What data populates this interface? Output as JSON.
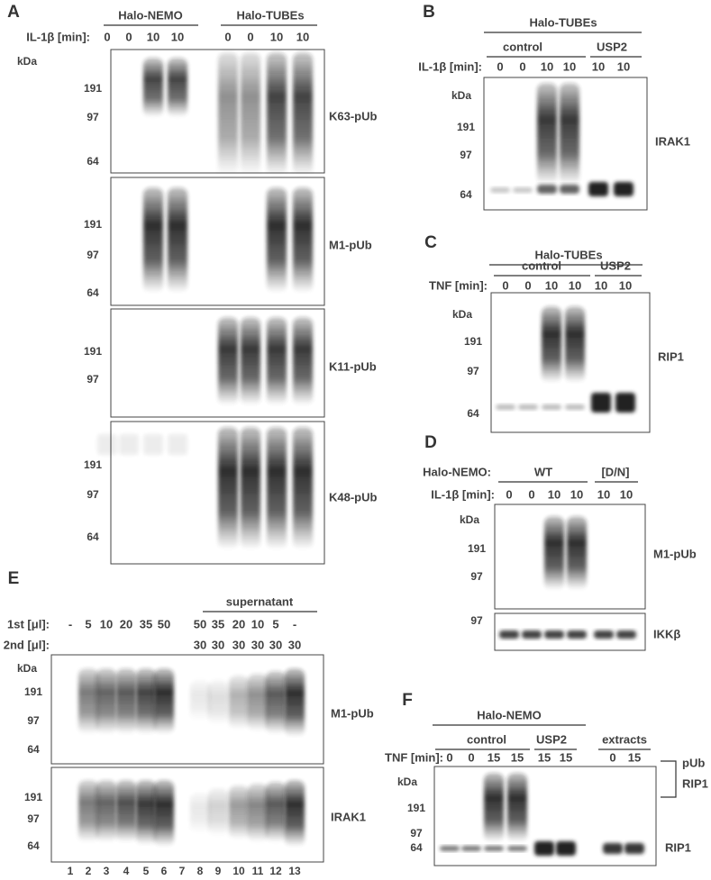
{
  "panel_a": {
    "letter": "A",
    "groups": [
      "Halo-NEMO",
      "Halo-TUBEs"
    ],
    "rows": [
      {
        "label": "IL-1β [min]:",
        "values": [
          "0",
          "0",
          "10",
          "10",
          "0",
          "0",
          "10",
          "10"
        ]
      }
    ],
    "kda": "kDa",
    "blots": [
      {
        "markers": [
          "191",
          "97",
          "64"
        ],
        "label": "K63-pUb"
      },
      {
        "markers": [
          "191",
          "97",
          "64"
        ],
        "label": "M1-pUb"
      },
      {
        "markers": [
          "191",
          "97"
        ],
        "label": "K11-pUb"
      },
      {
        "markers": [
          "191",
          "97",
          "64"
        ],
        "label": "K48-pUb"
      }
    ]
  },
  "panel_b": {
    "letter": "B",
    "groups": [
      "Halo-TUBEs"
    ],
    "subgroups": [
      "control",
      "USP2"
    ],
    "rows": [
      {
        "label": "IL-1β [min]:",
        "values": [
          "0",
          "0",
          "10",
          "10",
          "10",
          "10"
        ]
      }
    ],
    "kda": "kDa",
    "blots": [
      {
        "markers": [
          "191",
          "97",
          "64"
        ],
        "label": "IRAK1"
      }
    ]
  },
  "panel_c": {
    "letter": "C",
    "groups": [
      "Halo-TUBEs"
    ],
    "subgroups": [
      "control",
      "USP2"
    ],
    "rows": [
      {
        "label": "TNF [min]:",
        "values": [
          "0",
          "0",
          "10",
          "10",
          "10",
          "10"
        ]
      }
    ],
    "kda": "kDa",
    "blots": [
      {
        "markers": [
          "191",
          "97",
          "64"
        ],
        "label": "RIP1"
      }
    ]
  },
  "panel_d": {
    "letter": "D",
    "prefix": "Halo-NEMO:",
    "groups": [
      "WT",
      "[D/N]"
    ],
    "rows": [
      {
        "label": "IL-1β [min]:",
        "values": [
          "0",
          "0",
          "10",
          "10",
          "10",
          "10"
        ]
      }
    ],
    "kda": "kDa",
    "blots": [
      {
        "markers": [
          "191",
          "97"
        ],
        "label": "M1-pUb"
      },
      {
        "markers": [
          "97"
        ],
        "label": "IKKβ"
      }
    ]
  },
  "panel_e": {
    "letter": "E",
    "groups": [
      "supernatant"
    ],
    "rows": [
      {
        "label": "1st [μl]:",
        "values": [
          "-",
          "5",
          "10",
          "20",
          "35",
          "50",
          "50",
          "35",
          "20",
          "10",
          "5",
          "-"
        ]
      },
      {
        "label": "2nd [μl]:",
        "values": [
          "30",
          "30",
          "30",
          "30",
          "30",
          "30"
        ]
      }
    ],
    "kda": "kDa",
    "blots": [
      {
        "markers": [
          "191",
          "97",
          "64"
        ],
        "label": "M1-pUb"
      },
      {
        "markers": [
          "191",
          "97",
          "64"
        ],
        "label": "IRAK1"
      }
    ],
    "lane_numbers": [
      "1",
      "2",
      "3",
      "4",
      "5",
      "6",
      "7",
      "8",
      "9",
      "10",
      "11",
      "12",
      "13"
    ]
  },
  "panel_f": {
    "letter": "F",
    "groups": [
      "Halo-NEMO"
    ],
    "subgroups": [
      "control",
      "USP2",
      "extracts"
    ],
    "rows": [
      {
        "label": "TNF [min]:",
        "values": [
          "0",
          "0",
          "15",
          "15",
          "15",
          "15",
          "0",
          "15"
        ]
      }
    ],
    "kda": "kDa",
    "blots": [
      {
        "markers": [
          "191",
          "97",
          "64"
        ],
        "label": "RIP1"
      }
    ],
    "bracket_labels": [
      "pUb",
      "RIP1"
    ]
  }
}
